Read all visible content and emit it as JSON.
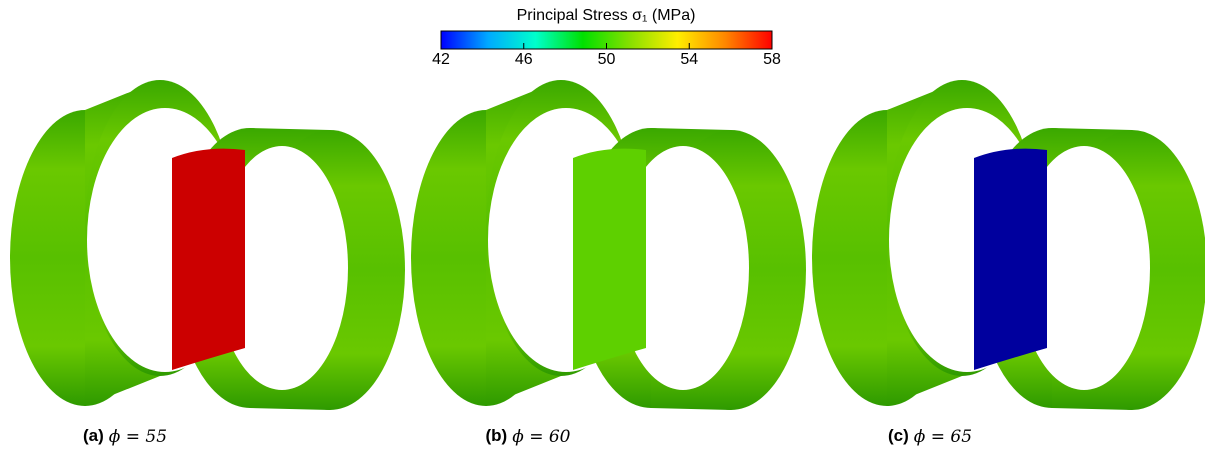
{
  "colorbar": {
    "title": "Principal Stress σ₁ (MPa)",
    "range": [
      42,
      58
    ],
    "ticks": [
      42,
      46,
      50,
      54,
      58
    ],
    "colors": [
      "#0000ff",
      "#00aaff",
      "#00ffcc",
      "#00e000",
      "#88e000",
      "#ffee00",
      "#ff8800",
      "#ff0000"
    ]
  },
  "panels": [
    {
      "label": "(a)",
      "caption": "ϕ = 55",
      "section_color": "#cc0000"
    },
    {
      "label": "(b)",
      "caption": "ϕ = 60",
      "section_color": "#5ed000"
    },
    {
      "label": "(c)",
      "caption": "ϕ = 65",
      "section_color": "#00009e"
    }
  ]
}
